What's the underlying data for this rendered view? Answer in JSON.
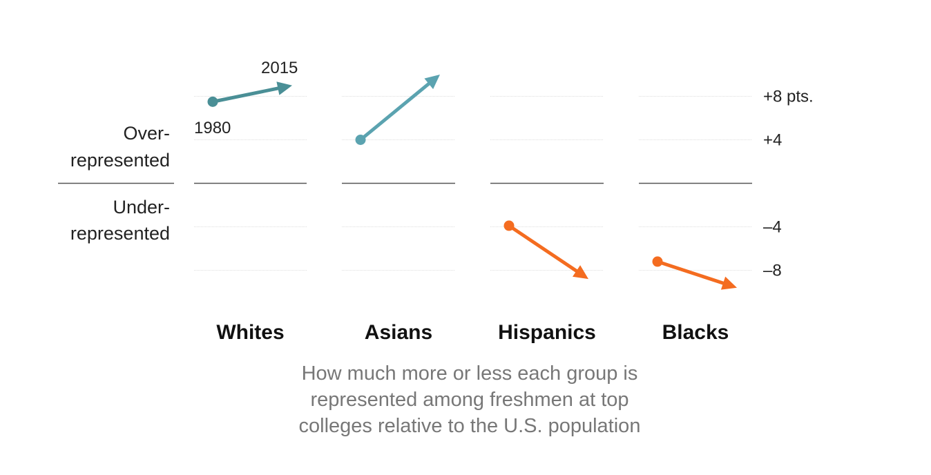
{
  "chart_data": {
    "type": "slope",
    "categories": [
      "Whites",
      "Asians",
      "Hispanics",
      "Blacks"
    ],
    "x": [
      "1980",
      "2015"
    ],
    "series": [
      {
        "category": "Whites",
        "values": [
          7.5,
          9.0
        ],
        "color": "#4a8f96"
      },
      {
        "category": "Asians",
        "values": [
          4.0,
          10.0
        ],
        "color": "#5ba3b0"
      },
      {
        "category": "Hispanics",
        "values": [
          -3.9,
          -8.8
        ],
        "color": "#f46c20"
      },
      {
        "category": "Blacks",
        "values": [
          -7.2,
          -9.6
        ],
        "color": "#f46c20"
      }
    ],
    "ylim": [
      -10,
      11
    ],
    "yticks": [
      {
        "value": 8,
        "label": "+8 pts."
      },
      {
        "value": 4,
        "label": "+4"
      },
      {
        "value": -4,
        "label": "–4"
      },
      {
        "value": -8,
        "label": "–8"
      }
    ],
    "side_labels": {
      "over": [
        "Over-",
        "represented"
      ],
      "under": [
        "Under-",
        "represented"
      ]
    },
    "year_annotations": {
      "start": "1980",
      "end": "2015"
    },
    "caption": [
      "How much more or less each group is",
      "represented among freshmen at top",
      "colleges relative to the U.S. population"
    ],
    "colors": {
      "positive": "#5ba3b0",
      "negative": "#f46c20",
      "grid": "#dddddd",
      "zero": "#555555"
    }
  }
}
